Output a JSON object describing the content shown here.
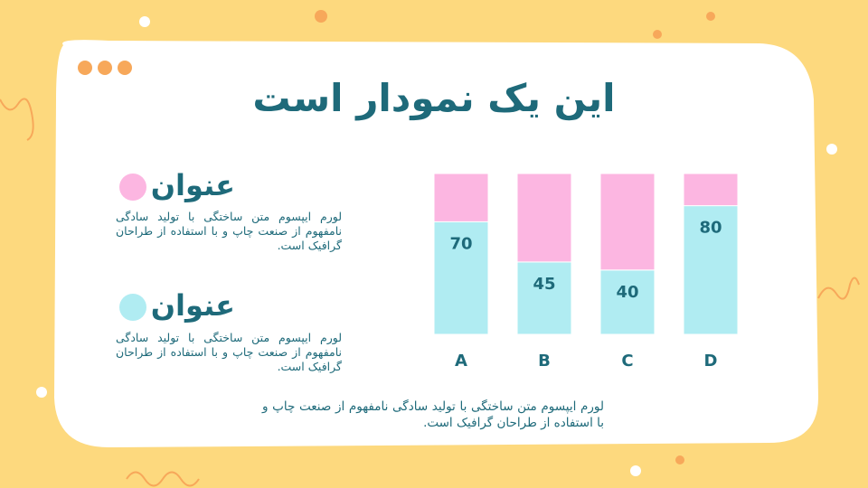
{
  "chart_data": {
    "type": "stacked_bar",
    "title": "این یک نمودار است",
    "categories": [
      "A",
      "B",
      "C",
      "D"
    ],
    "series": [
      {
        "name": "عنوان",
        "color": "#b0ecf2",
        "values": [
          70,
          45,
          40,
          80
        ],
        "data_labels": true
      },
      {
        "name": "عنوان",
        "color": "#fcb6e1",
        "values": [
          30,
          55,
          60,
          20
        ],
        "data_labels": false
      }
    ],
    "legend_notes": [
      "لورم ایپسوم متن ساختگی با تولید سادگی نامفهوم از صنعت چاپ و با استفاده از طراحان گرافیک است.",
      "لورم ایپسوم متن ساختگی با تولید سادگی نامفهوم از صنعت چاپ و با استفاده از طراحان گرافیک است."
    ],
    "caption": "لورم ایپسوم متن ساختگی با تولید سادگی نامفهوم از صنعت چاپ و با استفاده از طراحان گرافیک است."
  }
}
